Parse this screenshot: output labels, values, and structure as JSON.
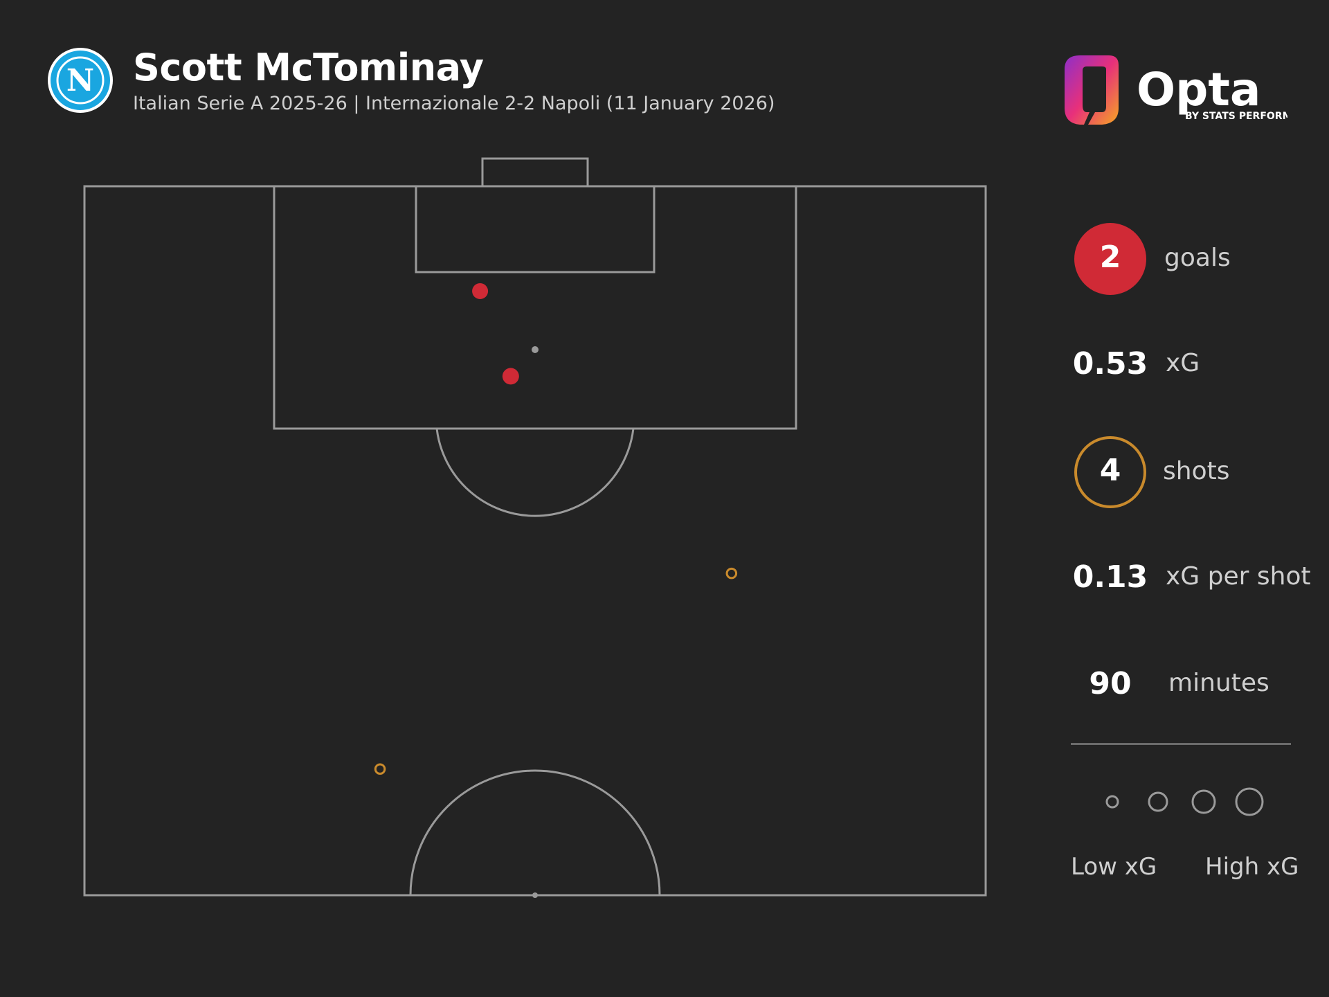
{
  "header": {
    "player_name": "Scott McTominay",
    "subtitle": "Italian Serie A 2025-26 | Internazionale 2-2 Napoli (11 January 2026)",
    "club_badge_letter": "N",
    "brand_name": "Opta",
    "brand_tagline": "BY STATS PERFORM"
  },
  "stats": {
    "goals_value": "2",
    "goals_label": "goals",
    "xg_value": "0.53",
    "xg_label": "xG",
    "shots_value": "4",
    "shots_label": "shots",
    "xg_per_shot_value": "0.13",
    "xg_per_shot_label": "xG per shot",
    "minutes_value": "90",
    "minutes_label": "minutes"
  },
  "legend": {
    "low_label": "Low xG",
    "high_label": "High xG",
    "sizes": [
      "low",
      "medium-low",
      "medium-high",
      "high"
    ]
  },
  "colors": {
    "background": "#232323",
    "pitch_lines": "#9a9a9a",
    "goal": "#d02a36",
    "shot": "#c98a2c",
    "badge_blue": "#1aa6e0",
    "brand_gradient": [
      "#8e2fc8",
      "#e8307a",
      "#f5a623"
    ]
  },
  "chart_data": {
    "type": "scatter",
    "title": "",
    "xlabel": "",
    "ylabel": "",
    "xlim": [
      0,
      100
    ],
    "ylim": [
      50,
      100
    ],
    "description_units": "pitch percentage; x = across pitch (left to right), y = length toward goal",
    "series": [
      {
        "name": "goals",
        "points": [
          {
            "x": 43.9,
            "y": 92.6,
            "xg": 0.22,
            "outcome": "goal"
          },
          {
            "x": 47.3,
            "y": 86.6,
            "xg": 0.25,
            "outcome": "goal"
          }
        ]
      },
      {
        "name": "shots",
        "points": [
          {
            "x": 71.8,
            "y": 72.7,
            "xg": 0.03,
            "outcome": "no goal"
          },
          {
            "x": 32.8,
            "y": 58.9,
            "xg": 0.03,
            "outcome": "no goal"
          }
        ]
      }
    ]
  }
}
